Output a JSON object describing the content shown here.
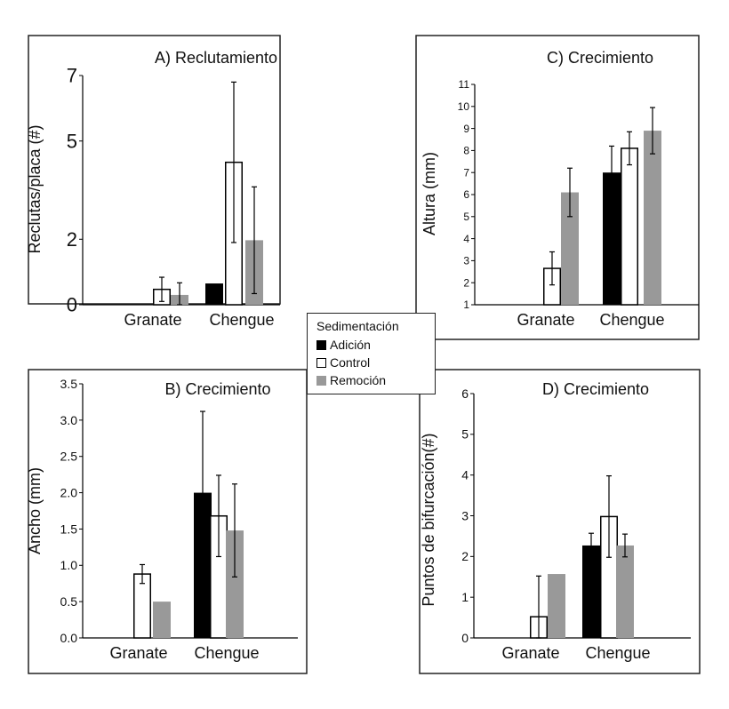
{
  "chart_data": [
    {
      "type": "bar",
      "title": "A) Reclutamiento",
      "ylabel": "Reclutas/placa (#)",
      "xlabel": "",
      "categories": [
        "Granate",
        "Chengue"
      ],
      "ylim": [
        0,
        7
      ],
      "yticks": [
        0,
        2,
        5,
        7
      ],
      "ytick_labels": [
        "0",
        "2",
        "5",
        "7"
      ],
      "series": [
        {
          "name": "Adición",
          "values": [
            0.0,
            0.65
          ],
          "errors": [
            0,
            0
          ]
        },
        {
          "name": "Control",
          "values": [
            0.47,
            4.35
          ],
          "errors": [
            0.37,
            2.45
          ]
        },
        {
          "name": "Remoción",
          "values": [
            0.3,
            1.97
          ],
          "errors": [
            0.37,
            1.63
          ]
        }
      ]
    },
    {
      "type": "bar",
      "title": "C) Crecimiento",
      "ylabel": "Altura (mm)",
      "xlabel": "",
      "categories": [
        "Granate",
        "Chengue"
      ],
      "ylim": [
        1,
        11
      ],
      "yticks": [
        1,
        2,
        3,
        4,
        5,
        6,
        7,
        8,
        9,
        10,
        11
      ],
      "ytick_labels": [
        "1",
        "2",
        "3",
        "4",
        "5",
        "6",
        "7",
        "8",
        "9",
        "10",
        "11"
      ],
      "series": [
        {
          "name": "Adición",
          "values": [
            null,
            7.0
          ],
          "errors": [
            0,
            1.2
          ]
        },
        {
          "name": "Control",
          "values": [
            2.65,
            8.1
          ],
          "errors": [
            0.75,
            0.75
          ]
        },
        {
          "name": "Remoción",
          "values": [
            6.1,
            8.9
          ],
          "errors": [
            1.1,
            1.05
          ]
        }
      ]
    },
    {
      "type": "bar",
      "title": "B) Crecimiento",
      "ylabel": "Ancho (mm)",
      "xlabel": "",
      "categories": [
        "Granate",
        "Chengue"
      ],
      "ylim": [
        0,
        3.5
      ],
      "yticks": [
        0,
        0.5,
        1,
        1.5,
        2,
        2.5,
        3,
        3.5
      ],
      "ytick_labels": [
        "0.0",
        "0.5",
        "1.0",
        "1.5",
        "2.0",
        "2.5",
        "3.0",
        "3.5"
      ],
      "series": [
        {
          "name": "Adición",
          "values": [
            null,
            2.0
          ],
          "errors": [
            0,
            1.12
          ]
        },
        {
          "name": "Control",
          "values": [
            0.88,
            1.68
          ],
          "errors": [
            0.13,
            0.56
          ]
        },
        {
          "name": "Remoción",
          "values": [
            0.5,
            1.48
          ],
          "errors": [
            0,
            0.64
          ]
        }
      ]
    },
    {
      "type": "bar",
      "title": "D) Crecimiento",
      "ylabel": "Puntos de bifurcación(#)",
      "xlabel": "",
      "categories": [
        "Granate",
        "Chengue"
      ],
      "ylim": [
        0,
        6
      ],
      "yticks": [
        0,
        1,
        2,
        3,
        4,
        5,
        6
      ],
      "ytick_labels": [
        "0",
        "1",
        "2",
        "3",
        "4",
        "5",
        "6"
      ],
      "series": [
        {
          "name": "Adición",
          "values": [
            null,
            2.27
          ],
          "errors": [
            0,
            0.3
          ]
        },
        {
          "name": "Control",
          "values": [
            0.52,
            2.98
          ],
          "errors": [
            1.0,
            1.0
          ]
        },
        {
          "name": "Remoción",
          "values": [
            1.57,
            2.27
          ],
          "errors": [
            0,
            0.28
          ]
        }
      ]
    }
  ],
  "legend": {
    "title": "Sedimentación",
    "items": [
      {
        "label": "Adición",
        "color": "#000000",
        "style": "filled"
      },
      {
        "label": "Control",
        "color": "#ffffff",
        "style": "outline"
      },
      {
        "label": "Remoción",
        "color": "#999999",
        "style": "filled"
      }
    ]
  },
  "colors": {
    "Adición": "#000000",
    "Control": "#ffffff",
    "Remoción": "#999999",
    "frame": "#222222"
  }
}
